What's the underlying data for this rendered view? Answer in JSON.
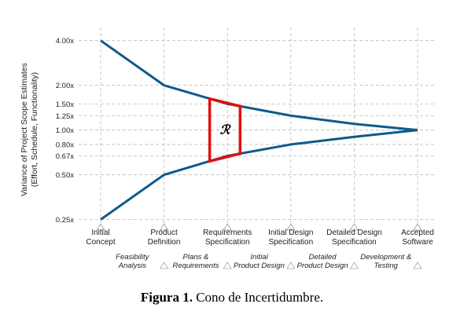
{
  "chart_data": {
    "type": "line",
    "y_label": [
      "Variance of Project Scope Estimates",
      "(Effort, Schedule, Functionality)"
    ],
    "categories": [
      [
        "Initial",
        "Concept"
      ],
      [
        "Product",
        "Definition"
      ],
      [
        "Requirements",
        "Specification"
      ],
      [
        "Initial Design",
        "Specification"
      ],
      [
        "Detailed Design",
        "Specification"
      ],
      [
        "Accepted",
        "Software"
      ]
    ],
    "phases": [
      [
        "Feasibility",
        "Analysis"
      ],
      [
        "Plans &",
        "Requirements"
      ],
      [
        "Initial",
        "Product Design"
      ],
      [
        "Detailed",
        "Product Design"
      ],
      [
        "Development &",
        "Testing"
      ]
    ],
    "series": [
      {
        "color": "#0e5a8a",
        "values": [
          4.0,
          2.0,
          1.5,
          1.25,
          1.1,
          1.0
        ]
      },
      {
        "color": "#0e5a8a",
        "values": [
          0.25,
          0.5,
          0.67,
          0.8,
          0.9,
          1.0
        ]
      }
    ],
    "log_scale": true,
    "ylim": [
      0.22,
      4.9
    ],
    "yticks": [
      {
        "value": 0.25,
        "label": "0.25x"
      },
      {
        "value": 0.5,
        "label": "0.50x"
      },
      {
        "value": 0.67,
        "label": "0.67x"
      },
      {
        "value": 0.8,
        "label": "0.80x"
      },
      {
        "value": 1.0,
        "label": "1.00x"
      },
      {
        "value": 1.25,
        "label": "1.25x"
      },
      {
        "value": 1.5,
        "label": "1.50x"
      },
      {
        "value": 2.0,
        "label": "2.00x"
      },
      {
        "value": 4.0,
        "label": "4.00x"
      }
    ],
    "grid": true,
    "annotation": "ℛ",
    "annotation_color": "#e01010"
  },
  "caption": {
    "label": "Figura 1.",
    "text": "Cono de Incertidumbre."
  }
}
